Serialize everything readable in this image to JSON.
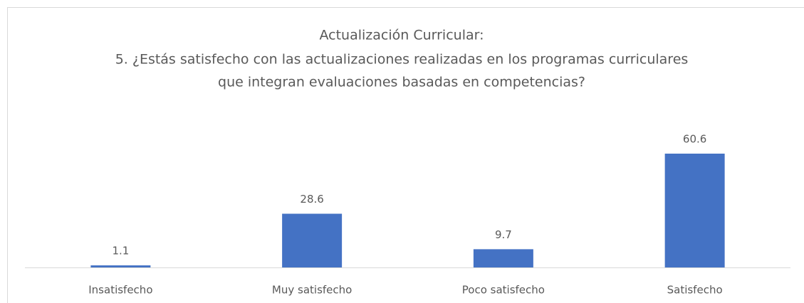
{
  "chart_data": {
    "type": "bar",
    "title": [
      "Actualización Curricular:",
      "5. ¿Estás satisfecho con las actualizaciones realizadas en los programas curriculares",
      "que integran evaluaciones basadas en competencias?"
    ],
    "categories": [
      "Insatisfecho",
      "Muy satisfecho",
      "Poco satisfecho",
      "Satisfecho"
    ],
    "values": [
      1.1,
      28.6,
      9.7,
      60.6
    ],
    "color": "#4472c4"
  }
}
